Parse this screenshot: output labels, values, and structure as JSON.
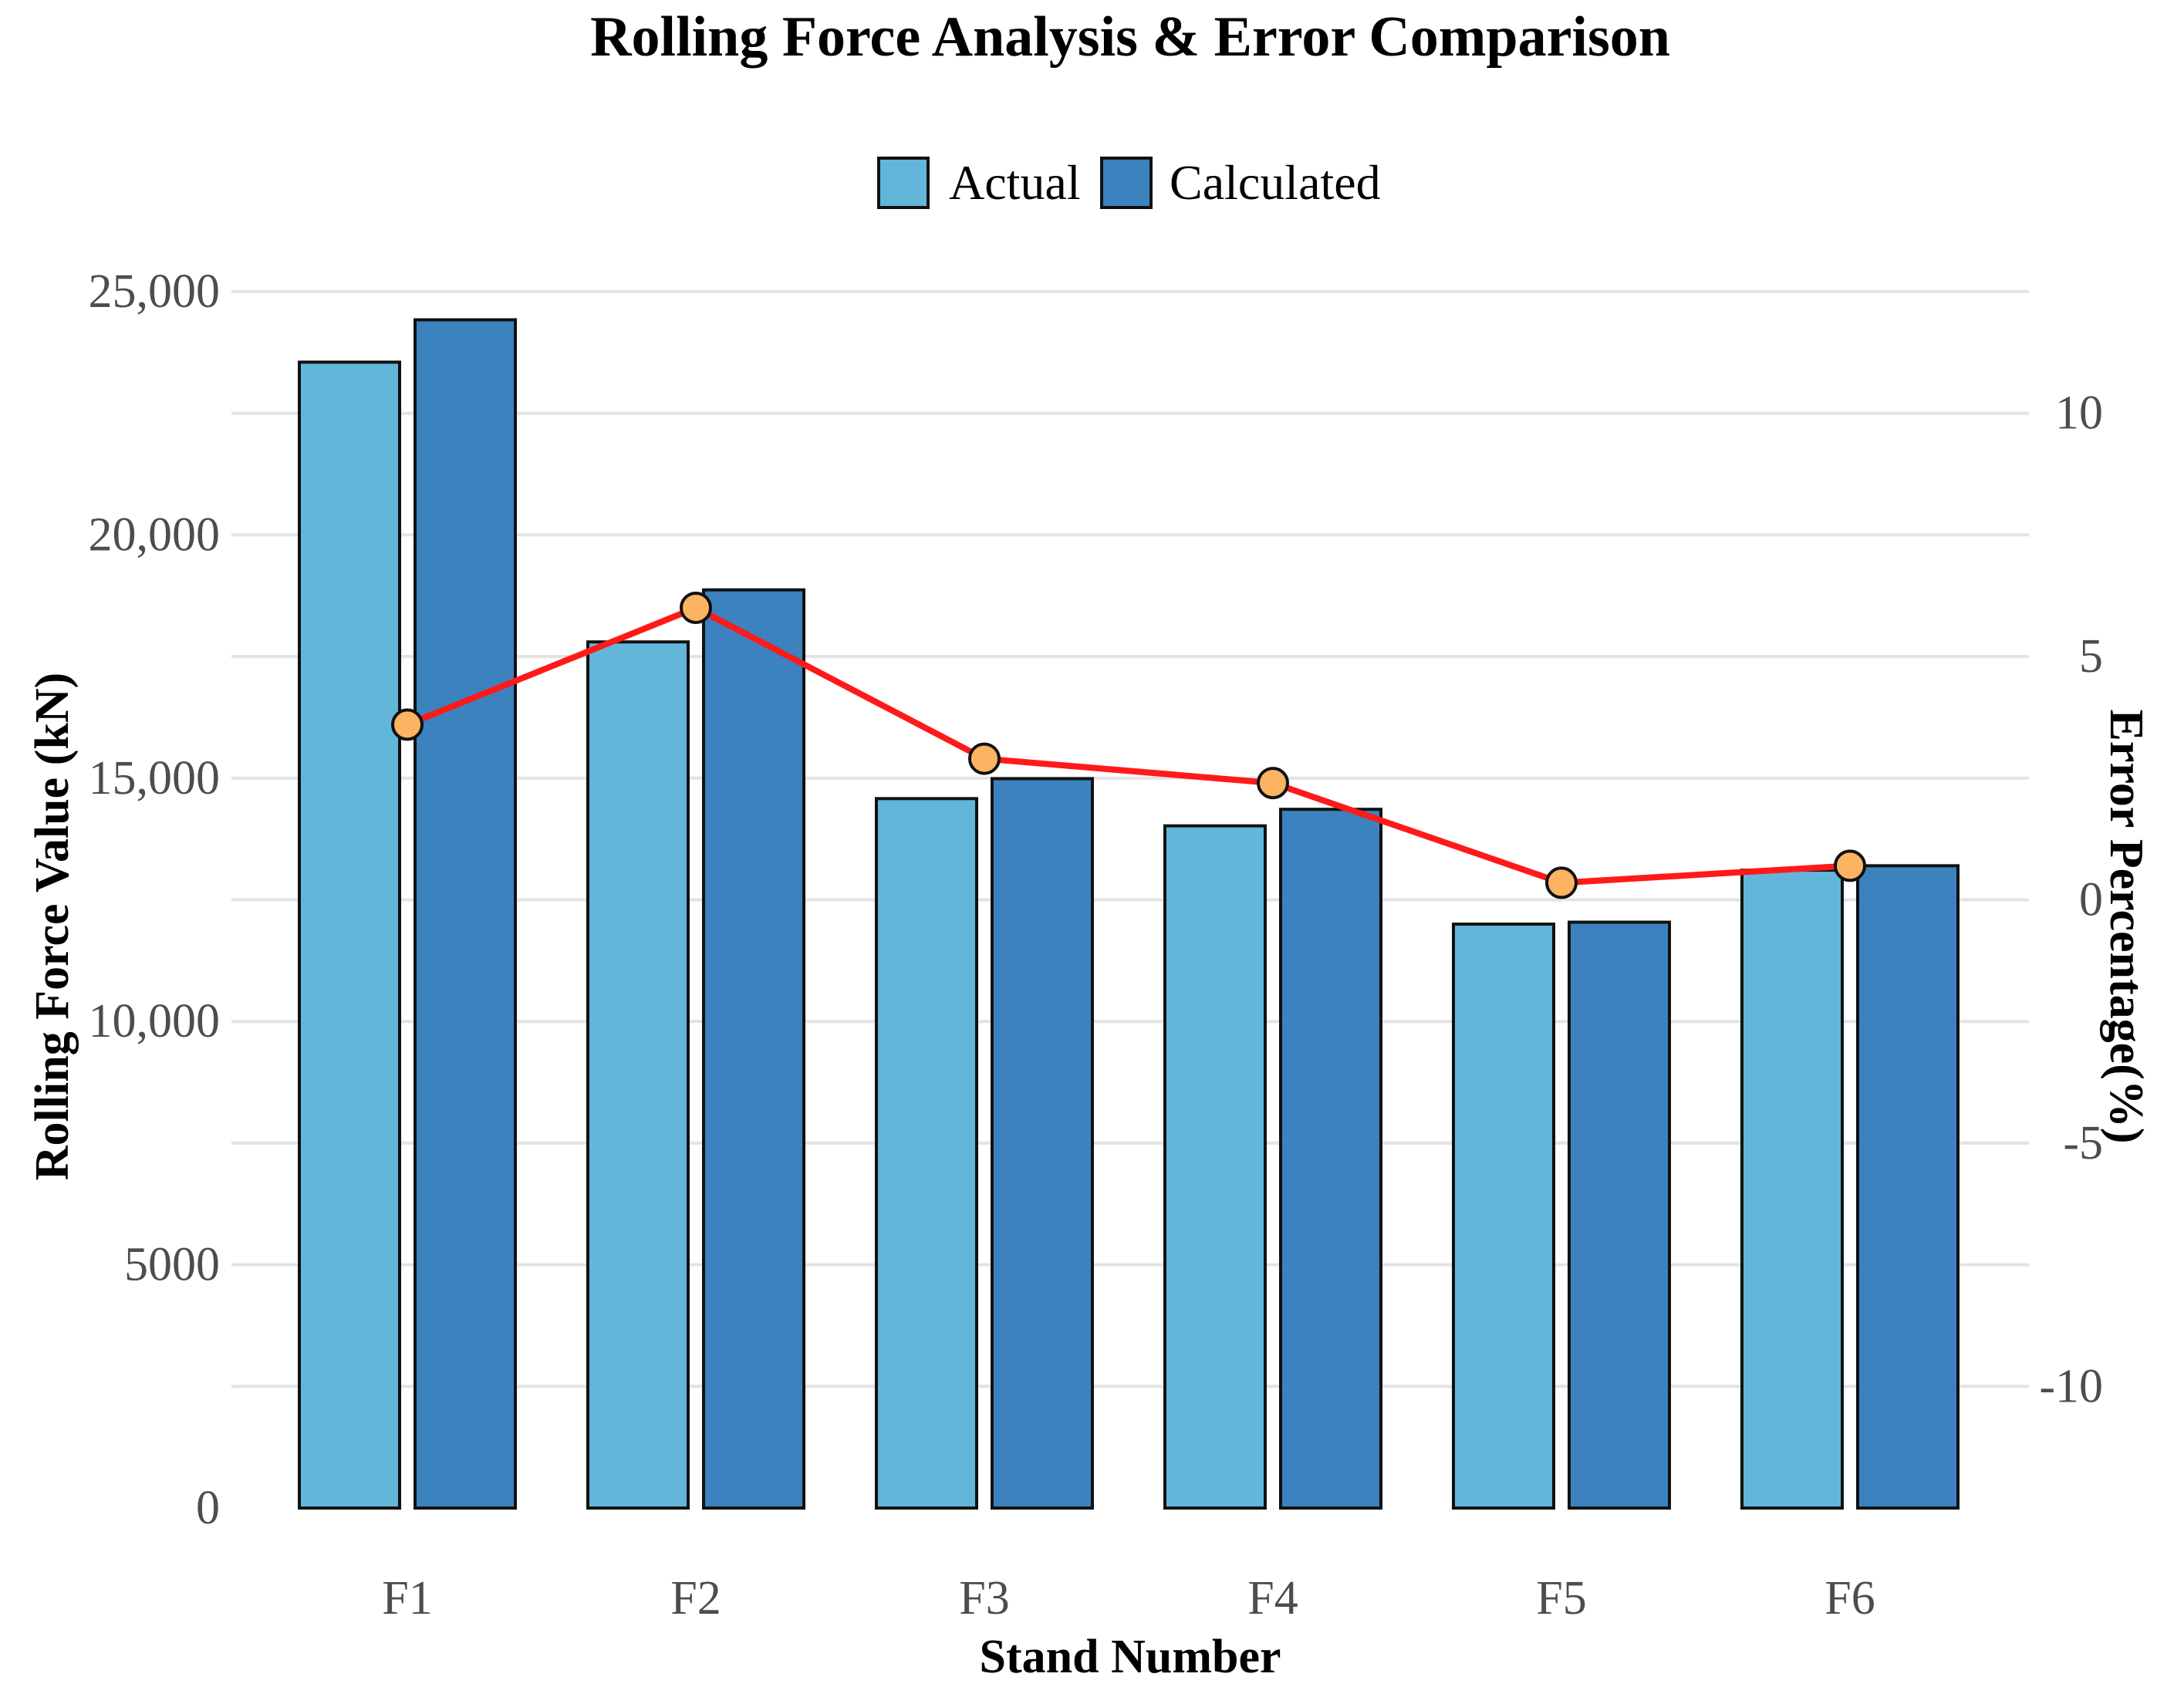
{
  "chart_data": {
    "type": "bar",
    "title": "Rolling Force Analysis & Error Comparison",
    "xlabel": "Stand Number",
    "ylabel": "Rolling Force Value (kN)",
    "y2label": "Error Percentage(%)",
    "categories": [
      "F1",
      "F2",
      "F3",
      "F4",
      "F5",
      "F6"
    ],
    "series": [
      {
        "name": "Actual",
        "type": "bar",
        "axis": "left",
        "color": "#62b6da",
        "values": [
          23550,
          17800,
          14580,
          14020,
          12000,
          13110
        ]
      },
      {
        "name": "Calculated",
        "type": "bar",
        "axis": "left",
        "color": "#3b82bf",
        "values": [
          24420,
          18870,
          14990,
          14360,
          12040,
          13200
        ]
      },
      {
        "name": "Error Percentage",
        "type": "line",
        "axis": "right",
        "color": "#ff1a1a",
        "marker_color": "#fdb462",
        "values": [
          3.6,
          6.0,
          2.9,
          2.4,
          0.35,
          0.7
        ]
      }
    ],
    "ylim": [
      0,
      25000
    ],
    "y2lim": [
      -12.5,
      12.5
    ],
    "yticks": [
      0,
      5000,
      10000,
      15000,
      20000,
      25000
    ],
    "ytick_labels": [
      "0",
      "5000",
      "10,000",
      "15,000",
      "20,000",
      "25,000"
    ],
    "y2ticks": [
      -10,
      -5,
      0,
      5,
      10
    ],
    "y2tick_labels": [
      "-10",
      "-5",
      "0",
      "5",
      "10"
    ],
    "grid": true,
    "legend": {
      "position": "top",
      "entries": [
        "Actual",
        "Calculated"
      ]
    }
  }
}
